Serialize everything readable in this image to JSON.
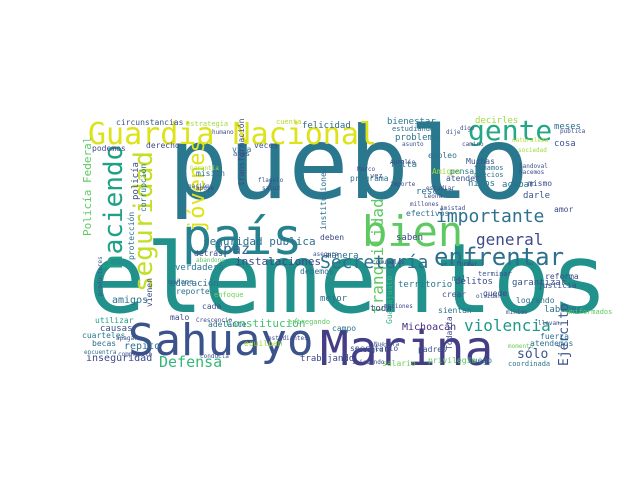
{
  "word_cloud": {
    "words": [
      {
        "text": "pueblo",
        "color": "#2a788e"
      },
      {
        "text": "elementos",
        "color": "#21918c"
      },
      {
        "text": "Sahuayo",
        "color": "#3b528b"
      },
      {
        "text": "Marina",
        "color": "#433e85"
      },
      {
        "text": "país",
        "color": "#26828e"
      },
      {
        "text": "bien",
        "color": "#5ec962"
      },
      {
        "text": "Guardia Nacional",
        "color": "#dde318"
      },
      {
        "text": "gente",
        "color": "#22a884"
      },
      {
        "text": "haciendo",
        "color": "#1fa187"
      },
      {
        "text": "seguridad",
        "color": "#c2df23"
      },
      {
        "text": "jóvenes",
        "color": "#dde318"
      },
      {
        "text": "enfrentar",
        "color": "#2d708e"
      },
      {
        "text": "tranquilidad",
        "color": "#5ec962"
      },
      {
        "text": "Secretaría",
        "color": "#2c728e"
      },
      {
        "text": "importante",
        "color": "#2c728e"
      },
      {
        "text": "general",
        "color": "#3e4a89"
      },
      {
        "text": "violencia",
        "color": "#1f9a8a"
      },
      {
        "text": "Defensa",
        "color": "#35b779"
      },
      {
        "text": "paz",
        "color": "#31688e"
      },
      {
        "text": "seguridad pública",
        "color": "#2d708e"
      },
      {
        "text": "instalaciones",
        "color": "#3e4989"
      },
      {
        "text": "Constitución",
        "color": "#44bf70"
      },
      {
        "text": "Michoacán",
        "color": "#472d7b"
      },
      {
        "text": "Ejército",
        "color": "#3a538b"
      },
      {
        "text": "sólo",
        "color": "#3b528b"
      },
      {
        "text": "inseguridad",
        "color": "#3e4989"
      },
      {
        "text": "trabajando",
        "color": "#3e4989"
      },
      {
        "text": "felicidad",
        "color": "#31688e"
      },
      {
        "text": "bienestar",
        "color": "#2a788e"
      },
      {
        "text": "circunstancias",
        "color": "#3b528b"
      },
      {
        "text": "Policía Federal",
        "color": "#5ec962"
      },
      {
        "text": "policía",
        "color": "#3e4989"
      },
      {
        "text": "amigos",
        "color": "#2d708e"
      },
      {
        "text": "repito",
        "color": "#2c728e"
      },
      {
        "text": "causas",
        "color": "#3b528b"
      },
      {
        "text": "cuarteles",
        "color": "#2a788e"
      },
      {
        "text": "becas",
        "color": "#2d708e"
      },
      {
        "text": "utilizar",
        "color": "#1f9e89"
      },
      {
        "text": "territorio",
        "color": "#2a788e"
      },
      {
        "text": "delitos",
        "color": "#3e4989"
      },
      {
        "text": "garantizar",
        "color": "#3b528b"
      },
      {
        "text": "reforma",
        "color": "#3e4989"
      },
      {
        "text": "justicia",
        "color": "#3b528b"
      },
      {
        "text": "labores",
        "color": "#2d708e"
      },
      {
        "text": "logrando",
        "color": "#2d708e"
      },
      {
        "text": "fuego",
        "color": "#2a788e"
      },
      {
        "text": "privilegio",
        "color": "#5ec962"
      },
      {
        "text": "salario",
        "color": "#6ece58"
      },
      {
        "text": "Todavía",
        "color": "#3e4989"
      },
      {
        "text": "Guanajuato",
        "color": "#35b779"
      },
      {
        "text": "sientan",
        "color": "#2d708e"
      },
      {
        "text": "crear",
        "color": "#3b528b"
      },
      {
        "text": "mal",
        "color": "#2c728e"
      },
      {
        "text": "manera",
        "color": "#2d708e"
      },
      {
        "text": "mejor",
        "color": "#2d708e"
      },
      {
        "text": "toda",
        "color": "#3e4989"
      },
      {
        "text": "campo",
        "color": "#2a788e"
      },
      {
        "text": "problema",
        "color": "#2c728e"
      },
      {
        "text": "estudiando",
        "color": "#2d708e"
      },
      {
        "text": "meses",
        "color": "#2c728e"
      },
      {
        "text": "decirles",
        "color": "#9fda3a"
      },
      {
        "text": "cosa",
        "color": "#3b528b"
      },
      {
        "text": "Muchas",
        "color": "#3b528b"
      },
      {
        "text": "tomamos",
        "color": "#2d708e"
      },
      {
        "text": "precios",
        "color": "#2c728e"
      },
      {
        "text": "hijos",
        "color": "#2a788e"
      },
      {
        "text": "acabar",
        "color": "#2d708e"
      },
      {
        "text": "mismo",
        "color": "#3e4989"
      },
      {
        "text": "darle",
        "color": "#3b528b"
      },
      {
        "text": "amor",
        "color": "#3e4989"
      },
      {
        "text": "saben",
        "color": "#3e4989"
      },
      {
        "text": "efectivos",
        "color": "#2c728e"
      },
      {
        "text": "pensar",
        "color": "#2a788e"
      },
      {
        "text": "atender",
        "color": "#3b528b"
      },
      {
        "text": "empleo",
        "color": "#2d708e"
      },
      {
        "text": "rescate",
        "color": "#2c728e"
      },
      {
        "text": "falta",
        "color": "#2a788e"
      },
      {
        "text": "programa",
        "color": "#2d708e"
      },
      {
        "text": "deben",
        "color": "#3e4989"
      },
      {
        "text": "debemos",
        "color": "#2d708e"
      },
      {
        "text": "podemos",
        "color": "#3e4989"
      },
      {
        "text": "derecho",
        "color": "#3e4989"
      },
      {
        "text": "vida",
        "color": "#2c728e"
      },
      {
        "text": "veces",
        "color": "#3b528b"
      },
      {
        "text": "Amigos",
        "color": "#9fda3a"
      },
      {
        "text": "verdadera",
        "color": "#2a788e"
      },
      {
        "text": "educación",
        "color": "#2d708e"
      },
      {
        "text": "reporte",
        "color": "#2c728e"
      },
      {
        "text": "protección",
        "color": "#2d708e"
      },
      {
        "text": "corrupción",
        "color": "#2c728e"
      },
      {
        "text": "detrás",
        "color": "#3e4989"
      },
      {
        "text": "cada",
        "color": "#3b528b"
      },
      {
        "text": "adelante",
        "color": "#2c728e"
      },
      {
        "text": "vienen",
        "color": "#3e4989"
      },
      {
        "text": "malo",
        "color": "#3e4989"
      },
      {
        "text": "mañana",
        "color": "#2d708e"
      },
      {
        "text": "secretario",
        "color": "#3b528b"
      },
      {
        "text": "integral",
        "color": "#3e4989"
      },
      {
        "text": "padres",
        "color": "#3b528b"
      },
      {
        "text": "fuerza",
        "color": "#2c728e"
      },
      {
        "text": "atendemos",
        "color": "#2d708e"
      },
      {
        "text": "coordinada",
        "color": "#2a788e"
      },
      {
        "text": "uniformados",
        "color": "#5ec962"
      },
      {
        "text": "misión",
        "color": "#2d708e"
      },
      {
        "text": "transformación",
        "color": "#3e4989"
      },
      {
        "text": "años",
        "color": "#3b528b"
      },
      {
        "text": "estrategia",
        "color": "#9fda3a"
      },
      {
        "text": "cuenta",
        "color": "#b5de2b"
      },
      {
        "text": "humano",
        "color": "#3b528b"
      },
      {
        "text": "pública",
        "color": "#3e4989"
      },
      {
        "text": "instituciones",
        "color": "#2d708e"
      },
      {
        "text": "encuentra",
        "color": "#2d708e"
      },
      {
        "text": "entregando",
        "color": "#5ec962"
      },
      {
        "text": "enfoque",
        "color": "#6ece58"
      },
      {
        "text": "abandono",
        "color": "#5ec962"
      },
      {
        "text": "equilpan",
        "color": "#9fda3a"
      },
      {
        "text": "iniciando",
        "color": "#3e4989"
      },
      {
        "text": "Sandoval",
        "color": "#3b528b"
      },
      {
        "text": "hacemos",
        "color": "#3e4989"
      },
      {
        "text": "naturaleza",
        "color": "#b5de2b"
      },
      {
        "text": "vez",
        "color": "#3b528b"
      },
      {
        "text": "millones",
        "color": "#3e4989"
      },
      {
        "text": "asegura",
        "color": "#3b528b"
      },
      {
        "text": "sociedad",
        "color": "#9fda3a"
      },
      {
        "text": "conducta",
        "color": "#3b528b"
      },
      {
        "text": "productores",
        "color": "#3b528b"
      },
      {
        "text": "Leona",
        "color": "#3e4989"
      },
      {
        "text": "Amistad",
        "color": "#3e4989"
      },
      {
        "text": "terminar",
        "color": "#3b528b"
      },
      {
        "text": "opciones",
        "color": "#3e4989"
      },
      {
        "text": "quede",
        "color": "#3e4989"
      },
      {
        "text": "olvidar",
        "color": "#3b528b"
      },
      {
        "text": "compre",
        "color": "#3b528b"
      },
      {
        "text": "gusto",
        "color": "#3e4989"
      },
      {
        "text": "salud",
        "color": "#3e4989"
      },
      {
        "text": "Garantía",
        "color": "#9fda3a"
      },
      {
        "text": "flagelo",
        "color": "#3b528b"
      },
      {
        "text": "camino",
        "color": "#3e4989"
      },
      {
        "text": "digo",
        "color": "#3b528b"
      },
      {
        "text": "dije",
        "color": "#3b528b"
      },
      {
        "text": "Marco",
        "color": "#3e4989"
      },
      {
        "text": "asunto",
        "color": "#3b528b"
      },
      {
        "text": "importe",
        "color": "#3e4989"
      },
      {
        "text": "Aurelio",
        "color": "#3e4989"
      },
      {
        "text": "apoye",
        "color": "#3e4989"
      },
      {
        "text": "nación",
        "color": "#3b528b"
      },
      {
        "text": "Crescencio",
        "color": "#3e4989"
      },
      {
        "text": "estudiar",
        "color": "#3e4989"
      },
      {
        "text": "momento",
        "color": "#6ece58"
      },
      {
        "text": "Nuestra",
        "color": "#3b528b"
      },
      {
        "text": "llevan",
        "color": "#3e4989"
      },
      {
        "text": "mínimo",
        "color": "#3b528b"
      },
      {
        "text": "formar",
        "color": "#3e4989"
      },
      {
        "text": "comunales",
        "color": "#3e4989"
      },
      {
        "text": "estudiantes",
        "color": "#3e4989"
      },
      {
        "text": "apagar",
        "color": "#3b528b"
      }
    ]
  }
}
